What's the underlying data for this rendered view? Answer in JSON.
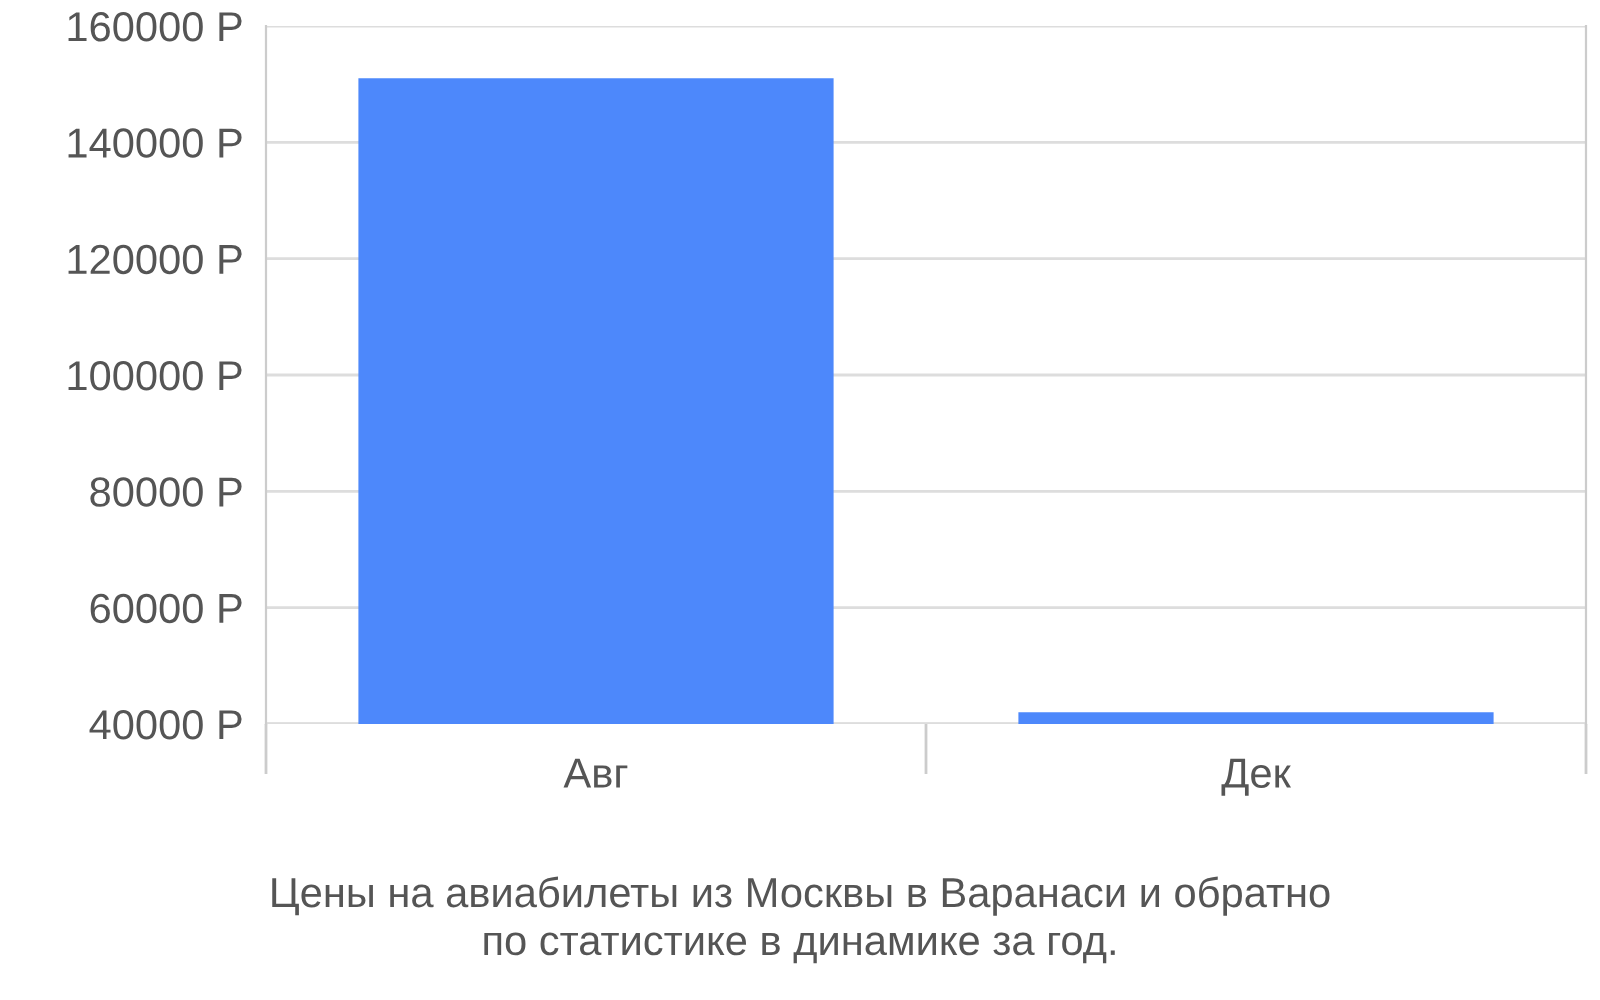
{
  "chart_data": {
    "type": "bar",
    "categories": [
      "Авг",
      "Дек"
    ],
    "values": [
      151000,
      42000
    ],
    "color": "#4d88fb",
    "ylim": [
      40000,
      160000
    ],
    "yticks": [
      {
        "value": 40000,
        "label": "40000 Р"
      },
      {
        "value": 60000,
        "label": "60000 Р"
      },
      {
        "value": 80000,
        "label": "80000 Р"
      },
      {
        "value": 100000,
        "label": "100000 Р"
      },
      {
        "value": 120000,
        "label": "120000 Р"
      },
      {
        "value": 140000,
        "label": "140000 Р"
      },
      {
        "value": 160000,
        "label": "160000 Р"
      }
    ],
    "grid": "y",
    "annotations": [
      "Цены на авиабилеты из Москвы в Варанаси и обратно\nпо статистике в динамике за год."
    ]
  }
}
